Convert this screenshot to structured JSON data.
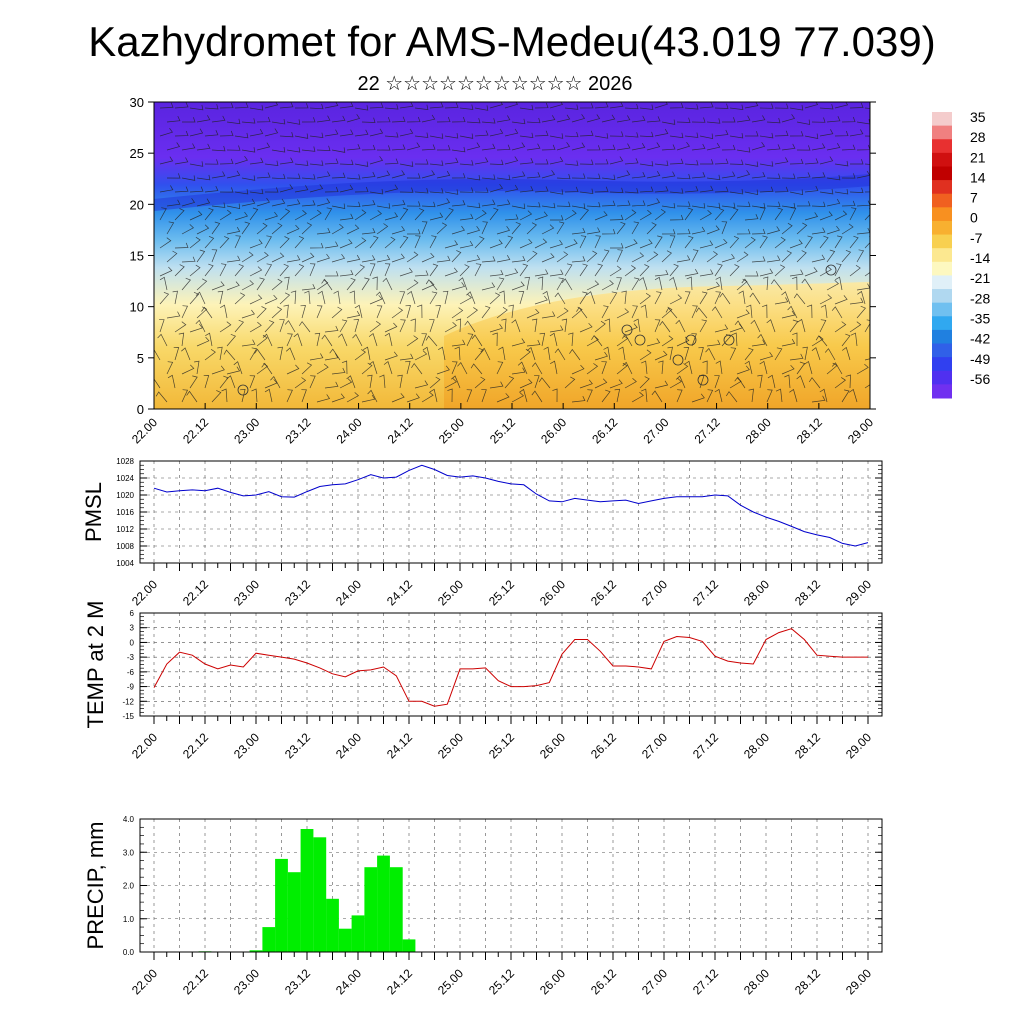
{
  "title": "Kazhydromet for AMS-Medeu(43.019 77.039)",
  "subtitle": "22 ☆☆☆☆☆☆☆☆☆☆☆ 2026",
  "time_ticks": [
    "22.00",
    "22.12",
    "23.00",
    "23.12",
    "24.00",
    "24.12",
    "25.00",
    "25.12",
    "26.00",
    "26.12",
    "27.00",
    "27.12",
    "28.00",
    "28.12",
    "29.00"
  ],
  "colorbar": {
    "labels": [
      "35",
      "28",
      "21",
      "14",
      "7",
      "0",
      "-7",
      "-14",
      "-21",
      "-28",
      "-35",
      "-42",
      "-49",
      "-56"
    ],
    "colors": [
      "#f4cccc",
      "#f08080",
      "#e83030",
      "#d01010",
      "#c00000",
      "#e03020",
      "#f06020",
      "#f89020",
      "#f8b030",
      "#f8d050",
      "#fce890",
      "#fdf8c0",
      "#e0f0f8",
      "#b0d8f0",
      "#70c0f0",
      "#30a8f0",
      "#2080e0",
      "#3060e8",
      "#3040f0",
      "#5030f0",
      "#7030f0"
    ]
  },
  "chart_data": [
    {
      "type": "heatmap",
      "name": "temperature-wind cross-section",
      "ylim": [
        0,
        30
      ],
      "yticks": [
        0,
        5,
        10,
        15,
        20,
        25,
        30
      ],
      "x_categories": [
        "22.00",
        "22.12",
        "23.00",
        "23.12",
        "24.00",
        "24.12",
        "25.00",
        "25.12",
        "26.00",
        "26.12",
        "27.00",
        "27.12",
        "28.00",
        "28.12",
        "29.00"
      ],
      "note": "Filled temperature field (colour scale -56..35) with wind barbs overlaid"
    },
    {
      "type": "line",
      "ylabel": "PMSL",
      "ylim": [
        1004,
        1028
      ],
      "yticks": [
        1004,
        1008,
        1012,
        1016,
        1020,
        1024,
        1028
      ],
      "color": "#0000cc",
      "x": [
        0,
        0.5,
        1,
        1.5,
        2,
        2.5,
        3,
        3.5,
        4,
        4.5,
        5,
        5.5,
        6,
        6.5,
        7,
        7.5,
        8,
        8.5,
        9,
        9.5,
        10,
        10.5,
        11,
        11.5,
        12,
        12.5,
        13,
        13.5,
        14,
        14.5,
        15,
        15.5,
        16,
        16.5,
        17,
        17.5,
        18,
        18.5,
        19,
        19.5,
        20,
        20.5,
        21,
        21.5,
        22,
        22.5,
        23,
        23.5,
        24,
        24.5,
        25,
        25.5,
        26,
        26.5,
        27,
        27.5,
        28
      ],
      "values": [
        1021.6,
        1020.7,
        1021.0,
        1021.2,
        1021.0,
        1021.6,
        1020.6,
        1019.8,
        1020.0,
        1020.8,
        1019.6,
        1019.5,
        1020.8,
        1022.0,
        1022.4,
        1022.6,
        1023.6,
        1024.8,
        1024.0,
        1024.2,
        1025.8,
        1027.0,
        1026.0,
        1024.6,
        1024.2,
        1024.5,
        1024.0,
        1023.2,
        1022.6,
        1022.4,
        1020.2,
        1018.6,
        1018.4,
        1019.2,
        1018.8,
        1018.4,
        1018.6,
        1018.8,
        1018.0,
        1018.6,
        1019.2,
        1019.6,
        1019.6,
        1019.6,
        1020.0,
        1019.8,
        1017.6,
        1016.0,
        1014.8,
        1013.8,
        1012.6,
        1011.4,
        1010.6,
        1010.0,
        1008.6,
        1008.0,
        1008.8
      ]
    },
    {
      "type": "line",
      "ylabel": "TEMP at 2 M",
      "ylim": [
        -15,
        6
      ],
      "yticks": [
        -15,
        -12,
        -9,
        -6,
        -3,
        0,
        3,
        6
      ],
      "color": "#cc0000",
      "x": [
        0,
        0.5,
        1,
        1.5,
        2,
        2.5,
        3,
        3.5,
        4,
        4.5,
        5,
        5.5,
        6,
        6.5,
        7,
        7.5,
        8,
        8.5,
        9,
        9.5,
        10,
        10.5,
        11,
        11.5,
        12,
        12.5,
        13,
        13.5,
        14,
        14.5,
        15,
        15.5,
        16,
        16.5,
        17,
        17.5,
        18,
        18.5,
        19,
        19.5,
        20,
        20.5,
        21,
        21.5,
        22,
        22.5,
        23,
        23.5,
        24,
        24.5,
        25,
        25.5,
        26,
        26.5,
        27,
        27.5,
        28
      ],
      "values": [
        -9.2,
        -4.4,
        -2.0,
        -2.6,
        -4.4,
        -5.4,
        -4.6,
        -5.0,
        -2.2,
        -2.6,
        -3.0,
        -3.4,
        -4.2,
        -5.2,
        -6.4,
        -7.0,
        -5.8,
        -5.6,
        -5.0,
        -6.8,
        -12.0,
        -12.0,
        -13.0,
        -12.6,
        -5.4,
        -5.4,
        -5.2,
        -7.8,
        -9.0,
        -9.0,
        -8.8,
        -8.2,
        -2.4,
        0.6,
        0.6,
        -1.8,
        -4.8,
        -4.8,
        -5.0,
        -5.4,
        0.2,
        1.2,
        1.0,
        0.2,
        -2.8,
        -3.8,
        -4.2,
        -4.4,
        0.6,
        2.0,
        2.8,
        0.6,
        -2.6,
        -2.8,
        -3.0,
        -3.0,
        -3.0
      ]
    },
    {
      "type": "bar",
      "ylabel": "PRECIP, mm",
      "ylim": [
        0,
        4
      ],
      "yticks": [
        "0.0",
        "1.0",
        "2.0",
        "3.0",
        "4.0"
      ],
      "color": "#00ee00",
      "x": [
        0,
        0.5,
        1,
        1.5,
        2,
        2.5,
        3,
        3.5,
        4,
        4.5,
        5,
        5.5,
        6,
        6.5,
        7,
        7.5,
        8,
        8.5,
        9,
        9.5,
        10,
        10.5,
        11,
        11.5,
        12,
        12.5,
        13,
        13.5,
        14,
        14.5,
        15,
        15.5,
        16,
        16.5,
        17,
        17.5,
        18,
        18.5,
        19,
        19.5,
        20,
        20.5,
        21,
        21.5,
        22,
        22.5,
        23,
        23.5,
        24,
        24.5,
        25,
        25.5,
        26,
        26.5,
        27,
        27.5,
        28
      ],
      "values": [
        0,
        0,
        0,
        0,
        0.02,
        0,
        0,
        0,
        0.05,
        0.75,
        2.8,
        2.4,
        3.7,
        3.45,
        1.6,
        0.7,
        1.1,
        2.55,
        2.9,
        2.55,
        0.38,
        0,
        0,
        0,
        0,
        0,
        0,
        0,
        0,
        0,
        0,
        0,
        0,
        0,
        0,
        0,
        0,
        0,
        0,
        0,
        0,
        0,
        0,
        0,
        0,
        0,
        0,
        0,
        0,
        0,
        0,
        0,
        0,
        0,
        0,
        0,
        0
      ]
    }
  ]
}
